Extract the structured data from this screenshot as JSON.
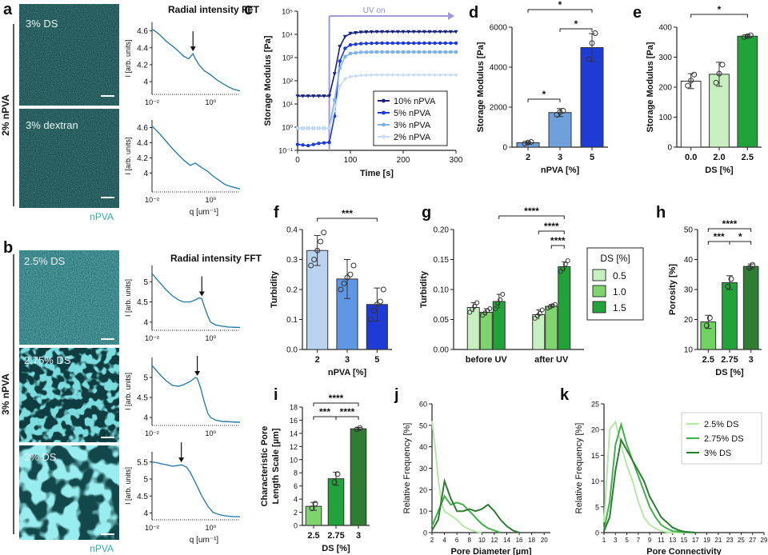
{
  "panel_letters": {
    "a": "a",
    "b": "b",
    "c": "c",
    "d": "d",
    "e": "e",
    "f": "f",
    "g": "g",
    "h": "h",
    "i": "i",
    "j": "j",
    "k": "k"
  },
  "side_labels": {
    "a": "2% nPVA",
    "b": "3% nPVA"
  },
  "image_labels": {
    "a": [
      "3% DS",
      "3% dextran"
    ],
    "b": [
      "2.5% DS",
      "2.75% DS",
      "3% DS"
    ],
    "a_channel": "nPVA",
    "b_channel": "nPVA"
  },
  "colors": {
    "teal": "#2fb0aa",
    "fft_line": "#2c7fa8",
    "navy": "#1a237e",
    "blue_mid": "#1f3bd6",
    "blue_light": "#7fb2e8",
    "blue_pale": "#c9dcf3",
    "green_pale": "#c8efc0",
    "green_mid": "#7fd46d",
    "green_dark": "#22a33a",
    "green_darkest": "#2e7d32"
  },
  "chart_data": [
    {
      "id": "a_fft",
      "type": "line",
      "title": "Radial intensity FFT",
      "ylabel": "I [arb. units]",
      "xlabel": "q [um⁻¹]",
      "xscale": "log",
      "xlim": [
        0.01,
        10
      ],
      "xticks": [
        "10⁻²",
        "10⁰"
      ],
      "plots": [
        {
          "name": "3% DS",
          "ylim": [
            3.85,
            4.7
          ],
          "yticks": [
            4,
            4.2,
            4.4,
            4.6
          ],
          "peak_q": 0.25,
          "x": [
            0.01,
            0.015,
            0.02,
            0.03,
            0.05,
            0.08,
            0.12,
            0.18,
            0.25,
            0.3,
            0.4,
            0.6,
            1.0,
            1.5,
            2.5,
            4,
            6,
            8,
            10
          ],
          "y": [
            4.62,
            4.58,
            4.54,
            4.48,
            4.42,
            4.36,
            4.3,
            4.27,
            4.33,
            4.27,
            4.2,
            4.13,
            4.08,
            4.03,
            3.98,
            3.94,
            3.91,
            3.9,
            3.89
          ]
        },
        {
          "name": "3% dextran",
          "ylim": [
            3.75,
            4.7
          ],
          "yticks": [
            4,
            4.2,
            4.4,
            4.6
          ],
          "x": [
            0.01,
            0.015,
            0.02,
            0.03,
            0.05,
            0.08,
            0.12,
            0.2,
            0.3,
            0.5,
            0.8,
            1.2,
            2,
            3,
            5,
            8,
            10
          ],
          "y": [
            4.62,
            4.55,
            4.5,
            4.42,
            4.32,
            4.24,
            4.17,
            4.1,
            4.13,
            4.07,
            4.02,
            3.96,
            3.9,
            3.85,
            3.82,
            3.8,
            3.79
          ]
        }
      ]
    },
    {
      "id": "b_fft",
      "type": "line",
      "title": "Radial intensity FFT",
      "ylabel": "I [arb. units]",
      "xlabel": "q [um⁻¹]",
      "xscale": "log",
      "xlim": [
        0.01,
        10
      ],
      "xticks": [
        "10⁻²",
        "10⁰"
      ],
      "plots": [
        {
          "name": "2.5% DS",
          "ylim": [
            3.8,
            5.4
          ],
          "yticks": [
            4,
            4.5,
            5
          ],
          "peak_q": 0.5,
          "x": [
            0.01,
            0.015,
            0.02,
            0.03,
            0.05,
            0.08,
            0.12,
            0.2,
            0.3,
            0.4,
            0.5,
            0.6,
            0.8,
            1,
            1.5,
            2.5,
            4,
            10
          ],
          "y": [
            5.2,
            5.05,
            4.95,
            4.8,
            4.65,
            4.55,
            4.5,
            4.5,
            4.55,
            4.6,
            4.58,
            4.4,
            4.15,
            4.0,
            3.93,
            3.9,
            3.88,
            3.87
          ]
        },
        {
          "name": "2.75% DS",
          "ylim": [
            3.8,
            5.5
          ],
          "yticks": [
            4,
            4.5,
            5
          ],
          "peak_q": 0.35,
          "x": [
            0.01,
            0.015,
            0.02,
            0.03,
            0.05,
            0.08,
            0.12,
            0.2,
            0.3,
            0.35,
            0.45,
            0.6,
            0.8,
            1,
            1.5,
            2.5,
            10
          ],
          "y": [
            5.3,
            5.15,
            5.05,
            4.92,
            4.8,
            4.78,
            4.82,
            4.9,
            5.0,
            4.98,
            4.75,
            4.4,
            4.1,
            4.0,
            3.93,
            3.9,
            3.88
          ]
        },
        {
          "name": "3% DS",
          "ylim": [
            3.8,
            5.8
          ],
          "yticks": [
            4,
            4.5,
            5,
            5.5
          ],
          "peak_q": 0.1,
          "x": [
            0.01,
            0.015,
            0.02,
            0.03,
            0.05,
            0.08,
            0.1,
            0.15,
            0.2,
            0.3,
            0.5,
            0.8,
            1.2,
            2,
            3,
            5,
            10
          ],
          "y": [
            5.5,
            5.48,
            5.45,
            5.42,
            5.38,
            5.4,
            5.42,
            5.35,
            5.2,
            4.9,
            4.5,
            4.2,
            4.02,
            3.95,
            3.92,
            3.9,
            3.89
          ]
        }
      ]
    },
    {
      "id": "c",
      "type": "line",
      "xlabel": "Time [s]",
      "ylabel": "Storage Modulus [Pa]",
      "yscale": "log",
      "xlim": [
        0,
        300
      ],
      "xticks": [
        "0",
        "100",
        "200",
        "300"
      ],
      "ylim": [
        0.1,
        100000
      ],
      "yticks": [
        "10⁻¹",
        "10⁰",
        "10¹",
        "10²",
        "10³",
        "10⁴",
        "10⁵"
      ],
      "annotation": "UV on",
      "uv_on_time": 60,
      "series": [
        {
          "name": "10% nPVA",
          "marker": "triangle",
          "x": [
            0,
            60,
            70,
            80,
            90,
            100,
            120,
            150,
            200,
            250,
            300
          ],
          "y": [
            22,
            22,
            200,
            3000,
            8000,
            11000,
            12500,
            13000,
            13000,
            13000,
            13000
          ]
        },
        {
          "name": "5% nPVA",
          "marker": "circle",
          "x": [
            0,
            20,
            40,
            60,
            70,
            80,
            90,
            100,
            120,
            150,
            200,
            250,
            300
          ],
          "y": [
            0.18,
            0.16,
            0.2,
            0.22,
            3,
            700,
            2500,
            3500,
            4000,
            4200,
            4200,
            4200,
            4200
          ]
        },
        {
          "name": "3% nPVA",
          "marker": "square",
          "x": [
            0,
            60,
            70,
            80,
            90,
            100,
            120,
            150,
            200,
            250,
            300
          ],
          "y": [
            0.9,
            0.9,
            15,
            350,
            1100,
            1500,
            1700,
            1750,
            1750,
            1750,
            1750
          ]
        },
        {
          "name": "2% nPVA",
          "marker": "diamond",
          "x": [
            0,
            60,
            70,
            80,
            90,
            100,
            120,
            150,
            200,
            250,
            300
          ],
          "y": [
            0.9,
            0.9,
            5,
            60,
            120,
            150,
            170,
            180,
            180,
            180,
            180
          ]
        }
      ]
    },
    {
      "id": "d",
      "type": "bar",
      "xlabel": "nPVA [%]",
      "ylabel": "Storage Modulus [Pa]",
      "categories": [
        "2",
        "3",
        "5"
      ],
      "values": [
        220,
        1730,
        4980
      ],
      "errors": [
        60,
        200,
        700
      ],
      "points": [
        [
          180,
          230,
          260
        ],
        [
          1620,
          1750,
          1820
        ],
        [
          4400,
          5200,
          5700
        ]
      ],
      "ylim": [
        0,
        6000
      ],
      "yticks": [
        "0",
        "2000",
        "4000",
        "6000"
      ],
      "significance": [
        {
          "pair": [
            0,
            1
          ],
          "label": "*"
        },
        {
          "pair": [
            1,
            2
          ],
          "label": "*"
        },
        {
          "pair": [
            0,
            2
          ],
          "label": "*"
        }
      ]
    },
    {
      "id": "e",
      "type": "bar",
      "xlabel": "DS [%]",
      "ylabel": "Storage Modulus [Pa]",
      "categories": [
        "0.0",
        "2.0",
        "2.5"
      ],
      "values": [
        220,
        243,
        370
      ],
      "errors": [
        25,
        40,
        5
      ],
      "points": [
        [
          205,
          222,
          242
        ],
        [
          215,
          245,
          275
        ],
        [
          367,
          370,
          373
        ]
      ],
      "ylim": [
        0,
        400
      ],
      "yticks": [
        "0",
        "100",
        "200",
        "300",
        "400"
      ],
      "significance": [
        {
          "pair": [
            0,
            2
          ],
          "label": "*"
        }
      ]
    },
    {
      "id": "f",
      "type": "bar",
      "xlabel": "nPVA [%]",
      "ylabel": "Turbidity",
      "categories": [
        "2",
        "3",
        "5"
      ],
      "values": [
        0.33,
        0.235,
        0.15
      ],
      "errors": [
        0.05,
        0.065,
        0.055
      ],
      "points": [
        [
          0.28,
          0.3,
          0.33,
          0.36,
          0.39
        ],
        [
          0.2,
          0.22,
          0.24,
          0.25,
          0.28
        ],
        [
          0.1,
          0.13,
          0.15,
          0.16,
          0.2
        ]
      ],
      "ylim": [
        0,
        0.4
      ],
      "yticks": [
        "0.0",
        "0.1",
        "0.2",
        "0.3",
        "0.4"
      ],
      "significance": [
        {
          "pair": [
            0,
            2
          ],
          "label": "***"
        }
      ]
    },
    {
      "id": "g",
      "type": "bar",
      "xlabel": "",
      "ylabel": "Turbidity",
      "categories": [
        "before UV",
        "after UV"
      ],
      "series": [
        {
          "name": "0.5",
          "values": [
            0.07,
            0.058
          ],
          "errors": [
            0.008,
            0.008
          ]
        },
        {
          "name": "1.0",
          "values": [
            0.062,
            0.072
          ],
          "errors": [
            0.006,
            0.003
          ]
        },
        {
          "name": "1.5",
          "values": [
            0.08,
            0.138
          ],
          "errors": [
            0.012,
            0.008
          ]
        }
      ],
      "points": [
        [
          [
            0.062,
            0.067,
            0.072,
            0.078
          ],
          [
            0.052,
            0.056,
            0.06,
            0.066
          ]
        ],
        [
          [
            0.057,
            0.061,
            0.065,
            0.068
          ],
          [
            0.069,
            0.071,
            0.073,
            0.075
          ]
        ],
        [
          [
            0.068,
            0.077,
            0.083,
            0.092
          ],
          [
            0.13,
            0.135,
            0.142,
            0.148
          ]
        ]
      ],
      "legend_title": "DS [%]",
      "ylim": [
        0,
        0.2
      ],
      "yticks": [
        "0.00",
        "0.05",
        "0.10",
        "0.15",
        "0.20"
      ],
      "significance": [
        {
          "label": "****"
        },
        {
          "label": "****"
        },
        {
          "label": "****"
        }
      ]
    },
    {
      "id": "h",
      "type": "bar",
      "xlabel": "DS [%]",
      "ylabel": "Porosity [%]",
      "categories": [
        "2.5",
        "2.75",
        "3"
      ],
      "values": [
        19.2,
        32.3,
        37.7
      ],
      "errors": [
        2.2,
        2.3,
        0.8
      ],
      "points": [
        [
          18,
          20.5
        ],
        [
          31,
          33.5
        ],
        [
          37.2,
          38.2
        ]
      ],
      "ylim": [
        10,
        50
      ],
      "yticks": [
        "10",
        "20",
        "30",
        "40",
        "50"
      ],
      "significance": [
        {
          "pair": [
            0,
            1
          ],
          "label": "***"
        },
        {
          "pair": [
            1,
            2
          ],
          "label": "*"
        },
        {
          "pair": [
            0,
            2
          ],
          "label": "****"
        }
      ]
    },
    {
      "id": "i",
      "type": "bar",
      "xlabel": "DS [%]",
      "ylabel_lines": [
        "Characteristic Pore",
        "Length Scale [µm]"
      ],
      "categories": [
        "2.5",
        "2.75",
        "3"
      ],
      "values": [
        2.9,
        7.1,
        14.7
      ],
      "errors": [
        0.6,
        1.0,
        0.2
      ],
      "points": [
        [
          2.6,
          3.3
        ],
        [
          6.6,
          7.8
        ],
        [
          14.6,
          14.8
        ]
      ],
      "ylim": [
        0,
        18
      ],
      "yticks": [
        "0",
        "2",
        "4",
        "6",
        "8",
        "10",
        "12",
        "14",
        "16",
        "18"
      ],
      "significance": [
        {
          "pair": [
            0,
            1
          ],
          "label": "***"
        },
        {
          "pair": [
            1,
            2
          ],
          "label": "****"
        },
        {
          "pair": [
            0,
            2
          ],
          "label": "****"
        }
      ]
    },
    {
      "id": "j",
      "type": "line",
      "xlabel": "Pore Diameter [µm]",
      "ylabel": "Relative Frequency [%]",
      "xlim": [
        2,
        21
      ],
      "xticks": [
        "2",
        "4",
        "6",
        "8",
        "10",
        "12",
        "14",
        "16",
        "18",
        "20"
      ],
      "ylim": [
        0,
        60
      ],
      "yticks": [
        "0",
        "10",
        "20",
        "30",
        "40",
        "50",
        "60"
      ],
      "series": [
        {
          "name": "2.5% DS",
          "x": [
            2,
            2.5,
            3,
            3.5,
            4,
            5,
            6,
            7,
            8,
            9,
            10
          ],
          "y": [
            52,
            40,
            25,
            14,
            10,
            8,
            6,
            3,
            1.5,
            0.5,
            0
          ]
        },
        {
          "name": "2.75% DS",
          "x": [
            2,
            3,
            4,
            5,
            6,
            7,
            8,
            9,
            10,
            11,
            12,
            13
          ],
          "y": [
            3,
            10,
            17,
            13,
            14,
            13,
            10,
            7,
            4,
            2,
            1,
            0
          ]
        },
        {
          "name": "3% DS",
          "x": [
            2,
            3,
            4,
            5,
            6,
            7,
            8,
            9,
            10,
            11,
            12,
            13,
            14,
            15,
            16
          ],
          "y": [
            1,
            6,
            24,
            16,
            10,
            10,
            11,
            10,
            11,
            13,
            10,
            6,
            3,
            1,
            0
          ]
        }
      ]
    },
    {
      "id": "k",
      "type": "line",
      "xlabel": "Pore Connectivity",
      "ylabel": "Relative Frequency [%]",
      "xlim": [
        1,
        29
      ],
      "xticks": [
        "1",
        "3",
        "5",
        "7",
        "9",
        "11",
        "13",
        "15",
        "17",
        "19",
        "21",
        "23",
        "25",
        "27",
        "29"
      ],
      "ylim": [
        0,
        25
      ],
      "yticks": [
        "0",
        "5",
        "10",
        "15",
        "20",
        "25"
      ],
      "series": [
        {
          "name": "2.5% DS",
          "x": [
            1,
            2,
            3,
            4,
            5,
            6,
            7,
            8,
            9,
            10,
            11,
            12,
            13,
            15
          ],
          "y": [
            2,
            20,
            21.5,
            17,
            13,
            10,
            6,
            3,
            1.5,
            0.8,
            0.3,
            0.1,
            0,
            0
          ]
        },
        {
          "name": "2.75% DS",
          "x": [
            1,
            2,
            3,
            4,
            5,
            6,
            7,
            8,
            9,
            10,
            11,
            12,
            13,
            14,
            15,
            17
          ],
          "y": [
            0.5,
            6,
            17,
            21,
            17,
            14,
            11,
            8,
            5,
            3,
            1.5,
            0.8,
            0.3,
            0.2,
            0.1,
            0
          ]
        },
        {
          "name": "3% DS",
          "x": [
            1,
            2,
            3,
            4,
            5,
            6,
            7,
            8,
            9,
            10,
            11,
            12,
            13,
            14,
            15,
            17
          ],
          "y": [
            0.3,
            3,
            12,
            18,
            16,
            14,
            12,
            10,
            7,
            5,
            3,
            2,
            1,
            0.5,
            0.2,
            0
          ]
        }
      ]
    }
  ]
}
